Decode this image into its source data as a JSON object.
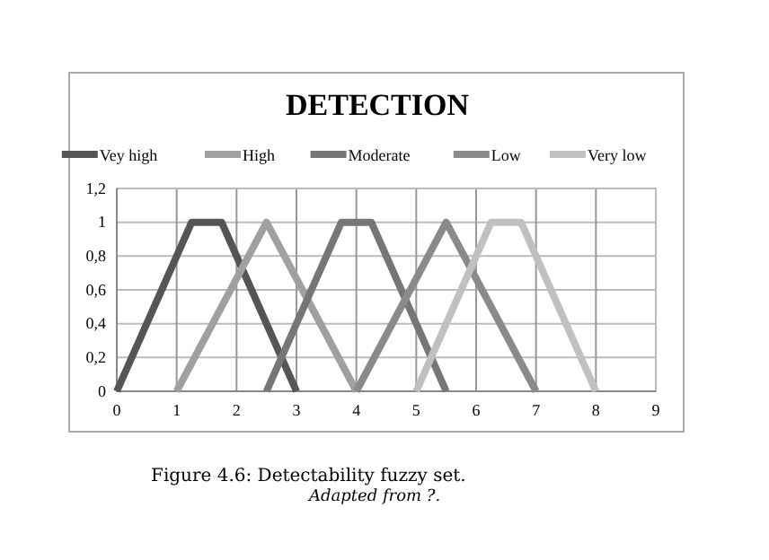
{
  "chart_data": {
    "type": "line",
    "title": "DETECTION",
    "series": [
      {
        "name": "Vey high",
        "color": "#555555",
        "x": [
          0,
          1.25,
          1.75,
          3
        ],
        "values": [
          0,
          1,
          1,
          0
        ]
      },
      {
        "name": "High",
        "color": "#a0a0a0",
        "x": [
          1,
          2.5,
          4
        ],
        "values": [
          0,
          1,
          0
        ]
      },
      {
        "name": "Moderate",
        "color": "#767676",
        "x": [
          2.5,
          3.75,
          4.25,
          5.5
        ],
        "values": [
          0,
          1,
          1,
          0
        ]
      },
      {
        "name": "Low",
        "color": "#8a8a8a",
        "x": [
          4,
          5.5,
          7
        ],
        "values": [
          0,
          1,
          0
        ]
      },
      {
        "name": "Very low",
        "color": "#c0c0c0",
        "x": [
          5,
          6.25,
          6.75,
          8
        ],
        "values": [
          0,
          1,
          1,
          0
        ]
      }
    ],
    "xlim": [
      0,
      9
    ],
    "xticks": [
      0,
      1,
      2,
      3,
      4,
      5,
      6,
      7,
      8,
      9
    ],
    "ylim": [
      0,
      1.2
    ],
    "yticks": [
      0,
      {
        "value": 0.2,
        "label": "0,2"
      },
      {
        "value": 0.4,
        "label": "0,4"
      },
      {
        "value": 0.6,
        "label": "0,6"
      },
      {
        "value": 0.8,
        "label": "0,8"
      },
      1,
      {
        "value": 1.2,
        "label": "1,2"
      }
    ],
    "grid": true,
    "legend": "top",
    "marker": "none",
    "line_style": "solid",
    "annotations": [
      "Figure 4.6: Detectability fuzzy set.",
      "Adapted from ?."
    ]
  }
}
